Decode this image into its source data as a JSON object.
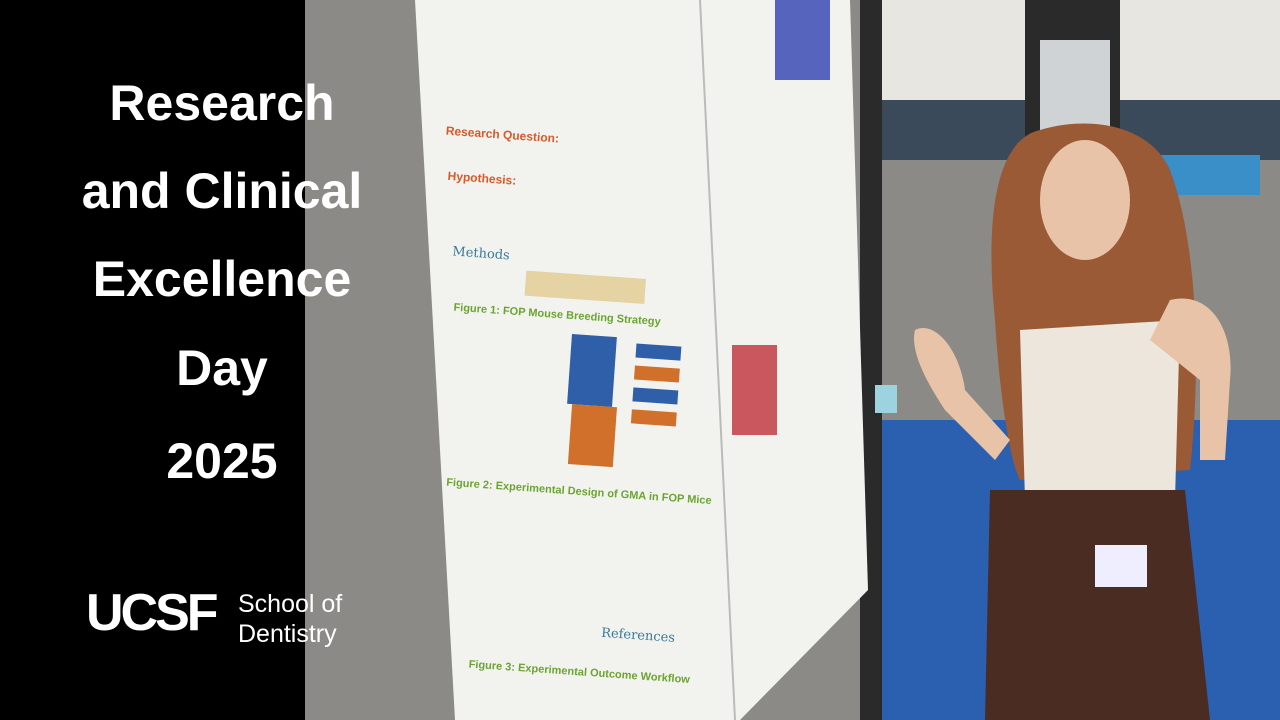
{
  "title_lines": [
    "Research",
    "and Clinical",
    "Excellence",
    "Day",
    "2025"
  ],
  "logo": {
    "mark": "UCSF",
    "lines": [
      "School of",
      "Dentistry"
    ]
  },
  "poster": {
    "research_question": "Research Question:",
    "hypothesis": "Hypothesis:",
    "methods": "Methods",
    "figure1": "Figure 1: FOP Mouse Breeding Strategy",
    "figure2": "Figure 2: Experimental Design of GMA in FOP Mice",
    "figure3": "Figure 3: Experimental Outcome Workflow",
    "references": "References"
  }
}
